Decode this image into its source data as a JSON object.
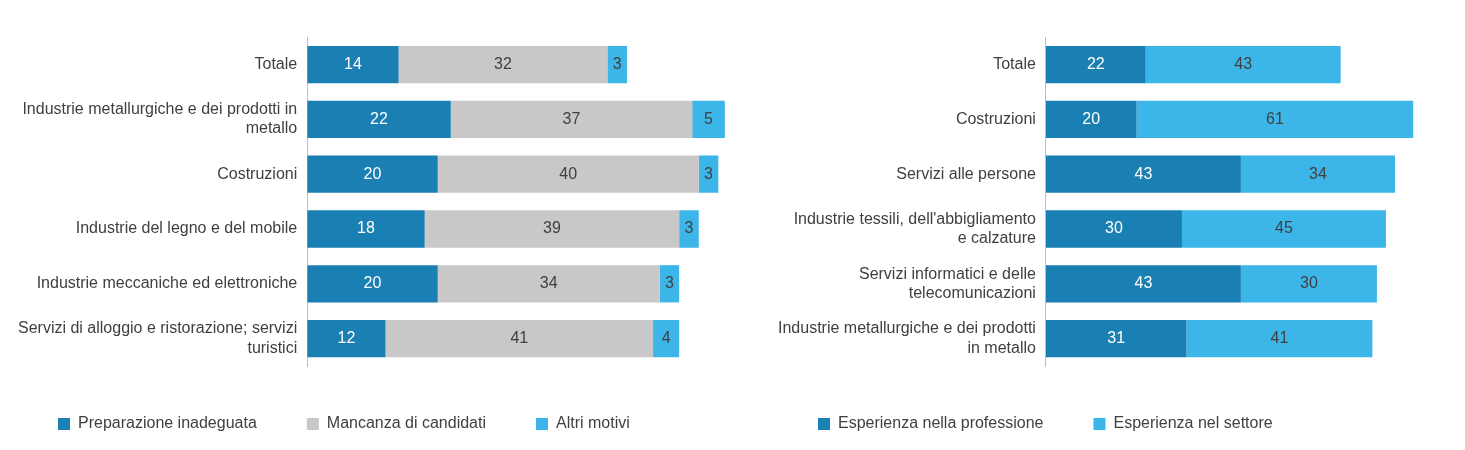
{
  "chart_data": [
    {
      "type": "bar",
      "orientation": "horizontal",
      "stacked": true,
      "data_labels": true,
      "grid": false,
      "legend": "bottom",
      "categories": [
        "Totale",
        "Industrie metallurgiche e dei prodotti in metallo",
        "Costruzioni",
        "Industrie del legno e del mobile",
        "Industrie meccaniche ed elettroniche",
        "Servizi di alloggio e ristorazione; servizi turistici"
      ],
      "series": [
        {
          "name": "Preparazione inadeguata",
          "color": "#1a7fb2",
          "values": [
            14,
            22,
            20,
            18,
            20,
            12
          ]
        },
        {
          "name": "Mancanza di candidati",
          "color": "#c8c8c8",
          "values": [
            32,
            37,
            40,
            39,
            34,
            41
          ]
        },
        {
          "name": "Altri motivi",
          "color": "#3cb6e8",
          "values": [
            3,
            5,
            3,
            3,
            3,
            4
          ]
        }
      ]
    },
    {
      "type": "bar",
      "orientation": "horizontal",
      "stacked": true,
      "data_labels": true,
      "grid": false,
      "legend": "bottom",
      "categories": [
        "Totale",
        "Costruzioni",
        "Servizi alle persone",
        "Industrie tessili, dell'abbigliamento e calzature",
        "Servizi informatici e delle telecomunicazioni",
        "Industrie metallurgiche e dei prodotti in metallo"
      ],
      "series": [
        {
          "name": "Esperienza nella professione",
          "color": "#1a7fb2",
          "values": [
            22,
            20,
            43,
            30,
            43,
            31
          ]
        },
        {
          "name": "Esperienza nel settore",
          "color": "#3cb6e8",
          "values": [
            43,
            61,
            34,
            45,
            30,
            41
          ]
        }
      ]
    }
  ]
}
